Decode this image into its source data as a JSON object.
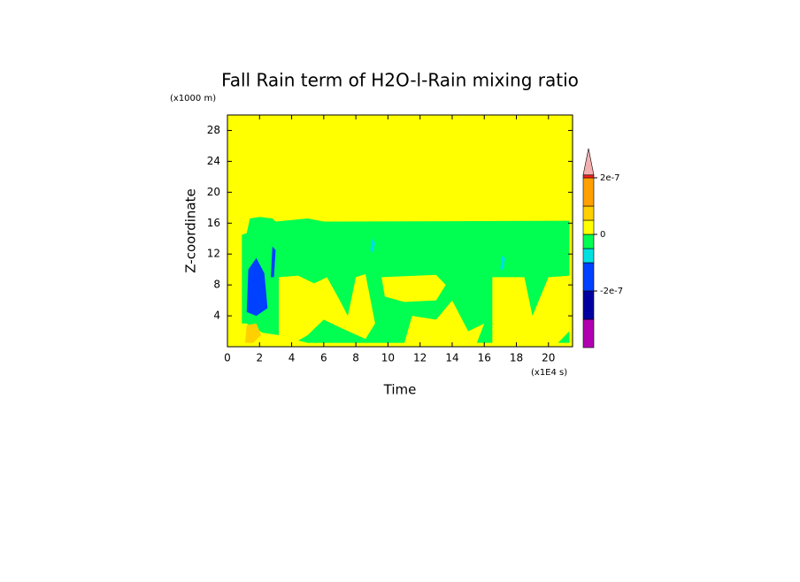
{
  "chart_data": {
    "type": "contour",
    "title": "Fall Rain term of H2O-l-Rain mixing ratio",
    "x_label": "Time",
    "y_label": "Z-coordinate",
    "x_unit": "(x1E4 s)",
    "y_unit": "(x1000 m)",
    "xlim": [
      0,
      21.5
    ],
    "ylim": [
      0,
      30
    ],
    "xticks": [
      0,
      2,
      4,
      6,
      8,
      10,
      12,
      14,
      16,
      18,
      20
    ],
    "yticks": [
      4,
      8,
      12,
      16,
      20,
      24,
      28
    ],
    "background_level": 5,
    "colorbar": {
      "bounds": [
        -4e-07,
        -3e-07,
        -2e-07,
        -1e-07,
        -5e-08,
        0,
        5e-08,
        1e-07,
        2e-07,
        2.1e-07
      ],
      "colors": [
        "#b000b0",
        "#0000a0",
        "#0040ff",
        "#00e0e0",
        "#00ff50",
        "#ffff00",
        "#ffd000",
        "#ffa000",
        "#ff2020"
      ],
      "extend_color": "#f4b0b0",
      "ticks": [
        {
          "value": 2e-07,
          "label": "2e-7"
        },
        0,
        {
          "value": -2e-07,
          "label": "-2e-7"
        }
      ]
    },
    "regions": [
      {
        "level": 4,
        "x": [
          0.9,
          0.9,
          1.2,
          1.4,
          2,
          2.8,
          3,
          5,
          6,
          21.3,
          21.3,
          5,
          4,
          3,
          2.2,
          1.2
        ],
        "y": [
          3,
          14.5,
          14.7,
          16.6,
          16.8,
          16.6,
          16.2,
          16.6,
          16.2,
          16.3,
          0.5,
          0.5,
          1,
          1.5,
          1.8,
          3
        ]
      },
      {
        "level": 5,
        "x": [
          3.2,
          3.2,
          4.4,
          5.4,
          6.2,
          7,
          7.5,
          8,
          8.6,
          9.2,
          8.6,
          7,
          6,
          5,
          4
        ],
        "y": [
          0.3,
          9,
          9.2,
          8.2,
          9,
          6,
          4,
          9,
          9.4,
          3,
          1,
          2.5,
          3.5,
          1.5,
          0.3
        ]
      },
      {
        "level": 5,
        "x": [
          9.8,
          9.6,
          13,
          13.6,
          13,
          11
        ],
        "y": [
          6.5,
          9,
          9.3,
          8,
          6,
          5.8
        ]
      },
      {
        "level": 5,
        "x": [
          11,
          11.5,
          13,
          14,
          15,
          16,
          15.5
        ],
        "y": [
          0.3,
          4,
          3.5,
          6,
          2,
          3,
          0.3
        ]
      },
      {
        "level": 5,
        "x": [
          16.5,
          16.5,
          18.5,
          19,
          20,
          21.3,
          21.3,
          20.5
        ],
        "y": [
          0.3,
          9,
          9,
          4,
          9,
          9.2,
          2,
          0.3
        ]
      },
      {
        "level": 5,
        "x": [
          0.9,
          0.9,
          2.2,
          3.2,
          3.2
        ],
        "y": [
          0,
          3,
          1.8,
          1.5,
          0
        ]
      },
      {
        "level": 2,
        "x": [
          1.2,
          1.3,
          1.8,
          2.3,
          2.5,
          1.8
        ],
        "y": [
          4.5,
          10,
          11.5,
          9.5,
          5,
          4
        ]
      },
      {
        "level": 2,
        "x": [
          2.7,
          2.8,
          3,
          2.9
        ],
        "y": [
          9,
          13,
          12.5,
          9
        ]
      },
      {
        "level": 6,
        "x": [
          1.1,
          1.2,
          1.8,
          2.1,
          1.6
        ],
        "y": [
          0.5,
          2.8,
          3,
          1.5,
          0.5
        ]
      },
      {
        "level": 3,
        "x": [
          8.9,
          9,
          9.2,
          9.1
        ],
        "y": [
          12.5,
          14,
          13.5,
          12.2
        ]
      },
      {
        "level": 3,
        "x": [
          17,
          17.1,
          17.3,
          17.2
        ],
        "y": [
          10,
          11.8,
          11.5,
          10
        ]
      }
    ]
  }
}
